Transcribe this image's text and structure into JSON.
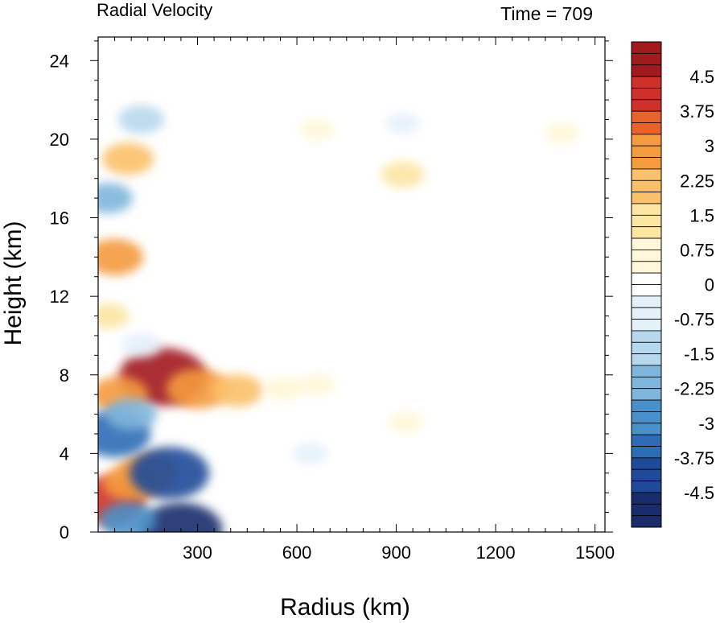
{
  "chart_data": {
    "type": "heatmap",
    "title": "Radial Velocity",
    "annotation": "Time = 709",
    "xlabel": "Radius (km)",
    "ylabel": "Height (km)",
    "xlim": [
      0,
      1530
    ],
    "ylim": [
      0,
      25.2
    ],
    "x_ticks": [
      300,
      600,
      900,
      1200,
      1500
    ],
    "y_ticks": [
      0,
      4,
      8,
      12,
      16,
      20,
      24
    ],
    "x_tick_labels": [
      "300",
      "600",
      "900",
      "1200",
      "1500"
    ],
    "y_tick_labels": [
      "0",
      "4",
      "8",
      "12",
      "16",
      "20",
      "24"
    ],
    "colorbar": {
      "min": -5.25,
      "max": 5.25,
      "step": 0.25,
      "tick_labels": [
        "4.5",
        "3.75",
        "3",
        "2.25",
        "1.5",
        "0.75",
        "0",
        "-0.75",
        "-1.5",
        "-2.25",
        "-3",
        "-3.75",
        "-4.5"
      ],
      "colors": [
        "#1a2d6b",
        "#1f4a99",
        "#2e6db5",
        "#4a90c8",
        "#7fb6dc",
        "#b6d8ec",
        "#e4f1f9",
        "#ffffff",
        "#fff7d8",
        "#fde5a3",
        "#fbc06a",
        "#f49a3f",
        "#e8622c",
        "#d0302a",
        "#a11a1e"
      ]
    },
    "features": [
      {
        "r": 195,
        "z": 7.9,
        "v": 5.2
      },
      {
        "r": 300,
        "z": 7.3,
        "v": 3.0
      },
      {
        "r": 420,
        "z": 7.2,
        "v": 2.0
      },
      {
        "r": 560,
        "z": 7.3,
        "v": 1.0
      },
      {
        "r": 660,
        "z": 7.5,
        "v": 0.8
      },
      {
        "r": 65,
        "z": 7.0,
        "v": 2.5
      },
      {
        "r": 50,
        "z": 14.0,
        "v": 2.5
      },
      {
        "r": 30,
        "z": 11.0,
        "v": 1.2
      },
      {
        "r": 30,
        "z": 1.6,
        "v": 4.0
      },
      {
        "r": 100,
        "z": 2.5,
        "v": 2.5
      },
      {
        "r": 150,
        "z": 3.0,
        "v": 2.8
      },
      {
        "r": 50,
        "z": 5.0,
        "v": -3.8
      },
      {
        "r": 100,
        "z": 6.0,
        "v": -2.0
      },
      {
        "r": 215,
        "z": 3.0,
        "v": -4.5
      },
      {
        "r": 250,
        "z": 0.1,
        "v": -4.8
      },
      {
        "r": 90,
        "z": 0.6,
        "v": -2.5
      },
      {
        "r": 30,
        "z": 17.0,
        "v": -1.8
      },
      {
        "r": 130,
        "z": 21.0,
        "v": -1.5
      },
      {
        "r": 90,
        "z": 19.0,
        "v": 2.0
      },
      {
        "r": 920,
        "z": 18.2,
        "v": 1.3
      },
      {
        "r": 660,
        "z": 20.5,
        "v": 0.6
      },
      {
        "r": 1400,
        "z": 20.3,
        "v": 0.6
      },
      {
        "r": 920,
        "z": 20.8,
        "v": -0.5
      },
      {
        "r": 640,
        "z": 4.0,
        "v": -0.6
      },
      {
        "r": 930,
        "z": 5.6,
        "v": 0.6
      },
      {
        "r": 130,
        "z": 9.5,
        "v": -1.0
      }
    ]
  }
}
